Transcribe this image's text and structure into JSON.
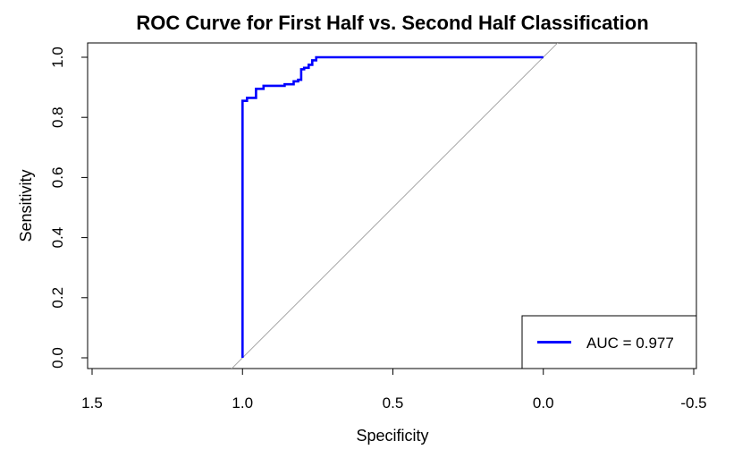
{
  "chart_data": {
    "type": "line",
    "title": "ROC Curve for First Half vs. Second Half Classification",
    "xlabel": "Specificity",
    "ylabel": "Sensitivity",
    "xlim": [
      1.5,
      -0.5
    ],
    "ylim": [
      0.0,
      1.0
    ],
    "x_reversed": true,
    "x_ticks": [
      1.5,
      1.0,
      0.5,
      0.0,
      -0.5
    ],
    "x_tick_labels": [
      "1.5",
      "1.0",
      "0.5",
      "0.0",
      "-0.5"
    ],
    "y_ticks": [
      0.0,
      0.2,
      0.4,
      0.6,
      0.8,
      1.0
    ],
    "y_tick_labels": [
      "0.0",
      "0.2",
      "0.4",
      "0.6",
      "0.8",
      "1.0"
    ],
    "grid": false,
    "reference_line": {
      "from": [
        1.0,
        0.0
      ],
      "to": [
        0.0,
        1.0
      ],
      "color": "#a6a6a6"
    },
    "series": [
      {
        "name": "AUC = 0.977",
        "color": "#0000ff",
        "x": [
          1.0,
          1.0,
          0.985,
          0.985,
          0.955,
          0.955,
          0.93,
          0.93,
          0.86,
          0.86,
          0.83,
          0.83,
          0.815,
          0.815,
          0.805,
          0.805,
          0.795,
          0.795,
          0.78,
          0.78,
          0.768,
          0.768,
          0.755,
          0.755,
          0.0
        ],
        "y": [
          0.0,
          0.855,
          0.855,
          0.865,
          0.865,
          0.895,
          0.895,
          0.905,
          0.905,
          0.91,
          0.91,
          0.92,
          0.92,
          0.925,
          0.925,
          0.96,
          0.96,
          0.965,
          0.965,
          0.975,
          0.975,
          0.99,
          0.99,
          1.0,
          1.0
        ]
      }
    ],
    "legend": {
      "position": "bottom-right",
      "entries": [
        "AUC = 0.977"
      ]
    }
  }
}
